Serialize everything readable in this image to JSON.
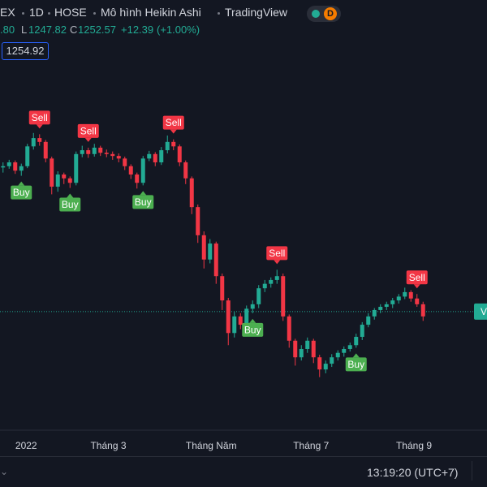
{
  "header": {
    "symbol": "EX",
    "interval": "1D",
    "exchange": "HOSE",
    "style": "Mô hình Heikin Ashi",
    "source": "TradingView",
    "badge": "D",
    "high_fragment": ".80",
    "low_label": "L",
    "low": "1247.82",
    "close_label": "C",
    "close": 1252.57,
    "change": "+12.39",
    "change_pct": "(+1.00%)",
    "price_box": "1254.92",
    "price_tag": "V"
  },
  "footer": {
    "time": "13:19:20 (UTC+7)"
  },
  "chart_data": {
    "type": "candlestick",
    "xlim": [
      -0.5,
      79.5
    ],
    "ylim": [
      1067,
      1740
    ],
    "xticks": [
      {
        "value": 3.8,
        "label": "2022"
      },
      {
        "value": 17.3,
        "label": "Tháng 3"
      },
      {
        "value": 34.2,
        "label": "Tháng Năm"
      },
      {
        "value": 50.6,
        "label": "Tháng 7"
      },
      {
        "value": 67.5,
        "label": "Tháng 9"
      }
    ],
    "up_color": "#22ab94",
    "down_color": "#f23645",
    "candles": [
      [
        1478,
        1486,
        1470,
        1480
      ],
      [
        1480,
        1490,
        1476,
        1486
      ],
      [
        1486,
        1489,
        1468,
        1473
      ],
      [
        1473,
        1484,
        1465,
        1480
      ],
      [
        1480,
        1515,
        1477,
        1511
      ],
      [
        1511,
        1532,
        1506,
        1524
      ],
      [
        1524,
        1530,
        1512,
        1518
      ],
      [
        1518,
        1521,
        1486,
        1492
      ],
      [
        1492,
        1495,
        1436,
        1448
      ],
      [
        1448,
        1472,
        1440,
        1467
      ],
      [
        1467,
        1470,
        1452,
        1461
      ],
      [
        1461,
        1464,
        1446,
        1454
      ],
      [
        1454,
        1503,
        1450,
        1499
      ],
      [
        1499,
        1512,
        1494,
        1505
      ],
      [
        1505,
        1509,
        1493,
        1499
      ],
      [
        1499,
        1515,
        1495,
        1509
      ],
      [
        1509,
        1512,
        1496,
        1501
      ],
      [
        1501,
        1506,
        1494,
        1499
      ],
      [
        1499,
        1503,
        1490,
        1496
      ],
      [
        1496,
        1500,
        1486,
        1492
      ],
      [
        1492,
        1495,
        1474,
        1480
      ],
      [
        1480,
        1483,
        1460,
        1467
      ],
      [
        1467,
        1470,
        1445,
        1454
      ],
      [
        1454,
        1496,
        1450,
        1492
      ],
      [
        1492,
        1504,
        1488,
        1499
      ],
      [
        1499,
        1502,
        1480,
        1486
      ],
      [
        1486,
        1510,
        1482,
        1505
      ],
      [
        1505,
        1528,
        1500,
        1518
      ],
      [
        1518,
        1522,
        1505,
        1511
      ],
      [
        1511,
        1514,
        1480,
        1486
      ],
      [
        1486,
        1489,
        1452,
        1461
      ],
      [
        1461,
        1464,
        1405,
        1416
      ],
      [
        1416,
        1420,
        1360,
        1372
      ],
      [
        1372,
        1378,
        1320,
        1334
      ],
      [
        1334,
        1366,
        1328,
        1359
      ],
      [
        1359,
        1362,
        1296,
        1308
      ],
      [
        1308,
        1312,
        1255,
        1270
      ],
      [
        1270,
        1274,
        1200,
        1219
      ],
      [
        1219,
        1252,
        1212,
        1245
      ],
      [
        1245,
        1250,
        1225,
        1232
      ],
      [
        1232,
        1262,
        1228,
        1257
      ],
      [
        1257,
        1270,
        1250,
        1264
      ],
      [
        1264,
        1294,
        1258,
        1289
      ],
      [
        1289,
        1302,
        1283,
        1296
      ],
      [
        1296,
        1306,
        1290,
        1302
      ],
      [
        1302,
        1318,
        1296,
        1308
      ],
      [
        1308,
        1312,
        1238,
        1245
      ],
      [
        1245,
        1248,
        1196,
        1207
      ],
      [
        1207,
        1210,
        1168,
        1181
      ],
      [
        1181,
        1200,
        1176,
        1194
      ],
      [
        1194,
        1212,
        1188,
        1207
      ],
      [
        1207,
        1210,
        1172,
        1181
      ],
      [
        1181,
        1185,
        1150,
        1162
      ],
      [
        1162,
        1176,
        1156,
        1171
      ],
      [
        1171,
        1186,
        1166,
        1181
      ],
      [
        1181,
        1192,
        1176,
        1188
      ],
      [
        1188,
        1198,
        1182,
        1194
      ],
      [
        1194,
        1204,
        1190,
        1200
      ],
      [
        1200,
        1218,
        1196,
        1213
      ],
      [
        1213,
        1236,
        1208,
        1232
      ],
      [
        1232,
        1250,
        1228,
        1245
      ],
      [
        1245,
        1258,
        1240,
        1255
      ],
      [
        1255,
        1264,
        1250,
        1260
      ],
      [
        1260,
        1268,
        1255,
        1264
      ],
      [
        1264,
        1274,
        1258,
        1270
      ],
      [
        1270,
        1280,
        1265,
        1276
      ],
      [
        1276,
        1290,
        1272,
        1283
      ],
      [
        1283,
        1286,
        1268,
        1273
      ],
      [
        1273,
        1280,
        1260,
        1264
      ],
      [
        1264,
        1268,
        1238,
        1245
      ]
    ],
    "signals": [
      {
        "label": "Buy",
        "index": 3
      },
      {
        "label": "Sell",
        "index": 6
      },
      {
        "label": "Buy",
        "index": 11
      },
      {
        "label": "Sell",
        "index": 14
      },
      {
        "label": "Buy",
        "index": 23
      },
      {
        "label": "Sell",
        "index": 28
      },
      {
        "label": "Buy",
        "index": 41
      },
      {
        "label": "Sell",
        "index": 45
      },
      {
        "label": "Buy",
        "index": 58
      },
      {
        "label": "Sell",
        "index": 68
      }
    ]
  }
}
